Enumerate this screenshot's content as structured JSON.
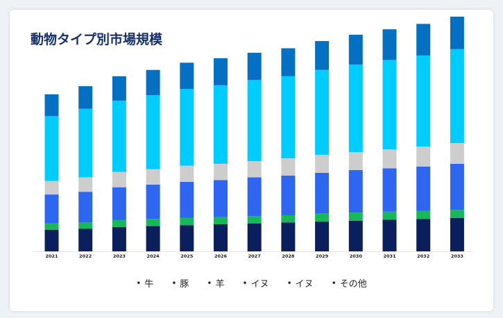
{
  "card": {
    "title": "動物タイプ別市場規模"
  },
  "chart_data": {
    "type": "bar",
    "stacked": true,
    "title": "動物タイプ別市場規模",
    "xlabel": "",
    "ylabel": "",
    "categories": [
      "2021",
      "2022",
      "2023",
      "2024",
      "2025",
      "2026",
      "2027",
      "2028",
      "2029",
      "2030",
      "2031",
      "2032",
      "2033"
    ],
    "grid": false,
    "legend_position": "bottom",
    "series": [
      {
        "name": "牛",
        "color": "#0a1f5c",
        "values": [
          24,
          25,
          27,
          28,
          29,
          30,
          31,
          32,
          33,
          34,
          35,
          36,
          37
        ]
      },
      {
        "name": "豚",
        "color": "#17b85b",
        "values": [
          7,
          7,
          8,
          8,
          8,
          8,
          8,
          8,
          9,
          9,
          9,
          9,
          9
        ]
      },
      {
        "name": "羊",
        "color": "#2f66f0",
        "values": [
          32,
          34,
          36,
          38,
          40,
          41,
          43,
          44,
          45,
          47,
          48,
          49,
          51
        ]
      },
      {
        "name": "イヌ",
        "color": "#cdcdcd",
        "values": [
          15,
          16,
          17,
          17,
          18,
          18,
          18,
          19,
          20,
          20,
          21,
          22,
          23
        ]
      },
      {
        "name": "イヌ",
        "color": "#00ccff",
        "values": [
          72,
          76,
          79,
          82,
          85,
          87,
          90,
          91,
          94,
          97,
          99,
          101,
          104
        ]
      },
      {
        "name": "その他",
        "color": "#0570c2",
        "values": [
          24,
          25,
          27,
          28,
          29,
          30,
          30,
          31,
          32,
          33,
          34,
          35,
          36
        ]
      }
    ]
  }
}
